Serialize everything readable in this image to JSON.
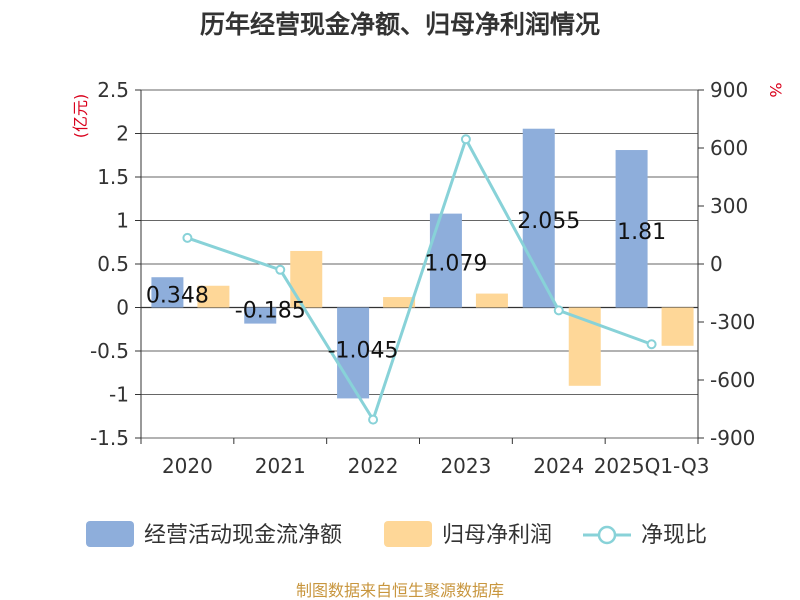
{
  "chart_data": {
    "type": "bar",
    "title": "历年经营现金净额、归母净利润情况",
    "categories": [
      "2020",
      "2021",
      "2022",
      "2023",
      "2024",
      "2025Q1-Q3"
    ],
    "left_unit": "(亿元)",
    "right_unit": "%",
    "y_left": {
      "min": -1.5,
      "max": 2.5,
      "ticks": [
        "2.5",
        "2",
        "1.5",
        "1",
        "0.5",
        "0",
        "-0.5",
        "-1",
        "-1.5"
      ],
      "tick_values": [
        2.5,
        2,
        1.5,
        1,
        0.5,
        0,
        -0.5,
        -1,
        -1.5
      ]
    },
    "y_right": {
      "min": -900,
      "max": 900,
      "ticks": [
        "900",
        "600",
        "300",
        "0",
        "-300",
        "-600",
        "-900"
      ],
      "tick_values": [
        900,
        600,
        300,
        0,
        -300,
        -600,
        -900
      ]
    },
    "series": [
      {
        "name": "经营活动现金流净额",
        "axis": "left",
        "type": "bar",
        "color": "#8eaedb",
        "values": [
          0.348,
          -0.185,
          -1.045,
          1.079,
          2.055,
          1.81
        ],
        "labels": [
          "0.348",
          "-0.185",
          "-1.045",
          "1.079",
          "2.055",
          "1.81"
        ]
      },
      {
        "name": "归母净利润",
        "axis": "left",
        "type": "bar",
        "color": "#fed798",
        "values": [
          0.25,
          0.65,
          0.12,
          0.16,
          -0.9,
          -0.44
        ]
      },
      {
        "name": "净现比",
        "axis": "right",
        "type": "line",
        "color": "#88d2d8",
        "values": [
          135,
          -30,
          -805,
          645,
          -240,
          -415
        ]
      }
    ],
    "source": "制图数据来自恒生聚源数据库"
  }
}
